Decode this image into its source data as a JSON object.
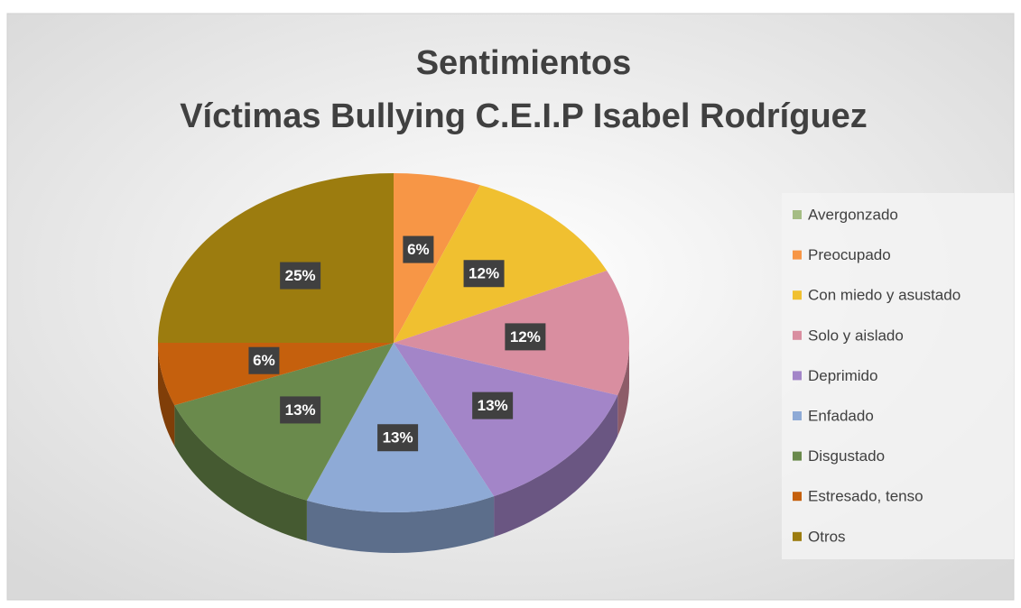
{
  "chart_data": {
    "type": "pie",
    "title": "Sentimientos",
    "subtitle": "Víctimas Bullying C.E.I.P Isabel Rodríguez",
    "categories": [
      "Avergonzado",
      "Preocupado",
      "Con miedo y asustado",
      "Solo y aislado",
      "Deprimido",
      "Enfadado",
      "Disgustado",
      "Estresado, tenso",
      "Otros"
    ],
    "values": [
      0,
      6,
      12,
      12,
      13,
      13,
      13,
      6,
      25
    ],
    "value_labels": [
      null,
      "6%",
      "12%",
      "12%",
      "13%",
      "13%",
      "13%",
      "6%",
      "25%"
    ],
    "colors": [
      "#a5bd84",
      "#f79646",
      "#f0c030",
      "#d98ea0",
      "#a385c8",
      "#8eaad6",
      "#6a8a4c",
      "#c5600d",
      "#9c7c0f"
    ],
    "legend": "right"
  }
}
